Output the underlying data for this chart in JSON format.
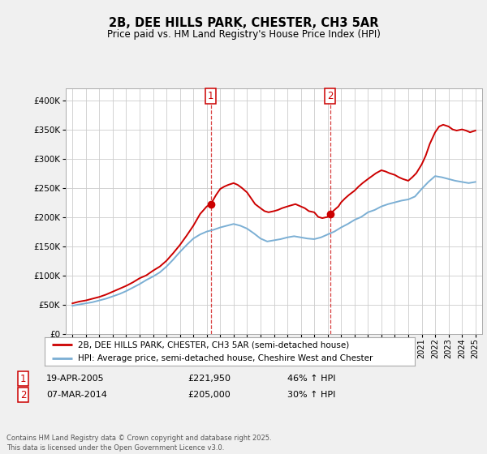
{
  "title": "2B, DEE HILLS PARK, CHESTER, CH3 5AR",
  "subtitle": "Price paid vs. HM Land Registry's House Price Index (HPI)",
  "legend_line1": "2B, DEE HILLS PARK, CHESTER, CH3 5AR (semi-detached house)",
  "legend_line2": "HPI: Average price, semi-detached house, Cheshire West and Chester",
  "annotation1": {
    "num": "1",
    "date": "19-APR-2005",
    "price": "£221,950",
    "hpi": "46% ↑ HPI",
    "x_year": 2005.3,
    "y_val": 221950
  },
  "annotation2": {
    "num": "2",
    "date": "07-MAR-2014",
    "price": "£205,000",
    "hpi": "30% ↑ HPI",
    "x_year": 2014.18,
    "y_val": 205000
  },
  "footer": "Contains HM Land Registry data © Crown copyright and database right 2025.\nThis data is licensed under the Open Government Licence v3.0.",
  "red_color": "#cc0000",
  "blue_color": "#7bafd4",
  "background_color": "#f0f0f0",
  "plot_bg_color": "#ffffff",
  "ylim": [
    0,
    420000
  ],
  "yticks": [
    0,
    50000,
    100000,
    150000,
    200000,
    250000,
    300000,
    350000,
    400000
  ],
  "xlim": [
    1994.5,
    2025.5
  ],
  "xticks": [
    1995,
    1996,
    1997,
    1998,
    1999,
    2000,
    2001,
    2002,
    2003,
    2004,
    2005,
    2006,
    2007,
    2008,
    2009,
    2010,
    2011,
    2012,
    2013,
    2014,
    2015,
    2016,
    2017,
    2018,
    2019,
    2020,
    2021,
    2022,
    2023,
    2024,
    2025
  ],
  "red_data": {
    "years": [
      1995.0,
      1995.5,
      1996.0,
      1996.5,
      1997.0,
      1997.5,
      1998.0,
      1998.5,
      1999.0,
      1999.5,
      2000.0,
      2000.5,
      2001.0,
      2001.5,
      2002.0,
      2002.5,
      2003.0,
      2003.5,
      2004.0,
      2004.5,
      2005.0,
      2005.3,
      2005.5,
      2005.7,
      2006.0,
      2006.3,
      2006.6,
      2007.0,
      2007.3,
      2007.6,
      2008.0,
      2008.3,
      2008.6,
      2009.0,
      2009.3,
      2009.6,
      2010.0,
      2010.3,
      2010.6,
      2011.0,
      2011.3,
      2011.6,
      2012.0,
      2012.3,
      2012.6,
      2013.0,
      2013.3,
      2013.6,
      2014.0,
      2014.18,
      2014.5,
      2014.8,
      2015.0,
      2015.3,
      2015.6,
      2016.0,
      2016.3,
      2016.6,
      2017.0,
      2017.3,
      2017.6,
      2018.0,
      2018.3,
      2018.6,
      2019.0,
      2019.3,
      2019.6,
      2020.0,
      2020.3,
      2020.6,
      2021.0,
      2021.3,
      2021.6,
      2022.0,
      2022.3,
      2022.6,
      2023.0,
      2023.3,
      2023.6,
      2024.0,
      2024.3,
      2024.6,
      2025.0
    ],
    "values": [
      52000,
      55000,
      57000,
      60000,
      63000,
      67000,
      72000,
      77000,
      82000,
      88000,
      95000,
      100000,
      108000,
      115000,
      125000,
      138000,
      152000,
      168000,
      185000,
      205000,
      218000,
      221950,
      230000,
      238000,
      248000,
      252000,
      255000,
      258000,
      255000,
      250000,
      242000,
      232000,
      222000,
      215000,
      210000,
      208000,
      210000,
      212000,
      215000,
      218000,
      220000,
      222000,
      218000,
      215000,
      210000,
      208000,
      200000,
      198000,
      200000,
      205000,
      212000,
      218000,
      225000,
      232000,
      238000,
      245000,
      252000,
      258000,
      265000,
      270000,
      275000,
      280000,
      278000,
      275000,
      272000,
      268000,
      265000,
      262000,
      268000,
      275000,
      290000,
      305000,
      325000,
      345000,
      355000,
      358000,
      355000,
      350000,
      348000,
      350000,
      348000,
      345000,
      348000
    ]
  },
  "blue_data": {
    "years": [
      1995.0,
      1995.5,
      1996.0,
      1996.5,
      1997.0,
      1997.5,
      1998.0,
      1998.5,
      1999.0,
      1999.5,
      2000.0,
      2000.5,
      2001.0,
      2001.5,
      2002.0,
      2002.5,
      2003.0,
      2003.5,
      2004.0,
      2004.5,
      2005.0,
      2005.5,
      2006.0,
      2006.5,
      2007.0,
      2007.5,
      2008.0,
      2008.5,
      2009.0,
      2009.5,
      2010.0,
      2010.5,
      2011.0,
      2011.5,
      2012.0,
      2012.5,
      2013.0,
      2013.5,
      2014.0,
      2014.5,
      2015.0,
      2015.5,
      2016.0,
      2016.5,
      2017.0,
      2017.5,
      2018.0,
      2018.5,
      2019.0,
      2019.5,
      2020.0,
      2020.5,
      2021.0,
      2021.5,
      2022.0,
      2022.5,
      2023.0,
      2023.5,
      2024.0,
      2024.5,
      2025.0
    ],
    "values": [
      48000,
      50000,
      52000,
      54000,
      57000,
      60000,
      64000,
      68000,
      73000,
      79000,
      85000,
      92000,
      98000,
      105000,
      115000,
      127000,
      140000,
      152000,
      163000,
      170000,
      175000,
      178000,
      182000,
      185000,
      188000,
      185000,
      180000,
      172000,
      163000,
      158000,
      160000,
      162000,
      165000,
      167000,
      165000,
      163000,
      162000,
      165000,
      170000,
      175000,
      182000,
      188000,
      195000,
      200000,
      208000,
      212000,
      218000,
      222000,
      225000,
      228000,
      230000,
      235000,
      248000,
      260000,
      270000,
      268000,
      265000,
      262000,
      260000,
      258000,
      260000
    ]
  }
}
